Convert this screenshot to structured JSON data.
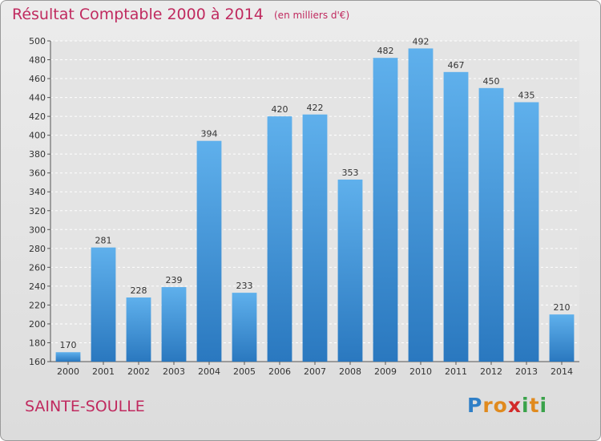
{
  "chart_data": {
    "type": "bar",
    "title": "Résultat Comptable 2000 à 2014",
    "subtitle": "(en milliers d'€)",
    "categories": [
      "2000",
      "2001",
      "2002",
      "2003",
      "2004",
      "2005",
      "2006",
      "2007",
      "2008",
      "2009",
      "2010",
      "2011",
      "2012",
      "2013",
      "2014"
    ],
    "values": [
      170,
      281,
      228,
      239,
      394,
      233,
      420,
      422,
      353,
      482,
      492,
      467,
      450,
      435,
      210
    ],
    "ylim": [
      160,
      500
    ],
    "yticks": [
      160,
      180,
      200,
      220,
      240,
      260,
      280,
      300,
      320,
      340,
      360,
      380,
      400,
      420,
      440,
      460,
      480,
      500
    ],
    "xlabel": "",
    "ylabel": "",
    "grid": true,
    "bar_color": "#3f97d8",
    "bar_color_light": "#5fb0ec"
  },
  "footer": {
    "commune": "SAINTE-SOULLE",
    "logo_letters": [
      "P",
      "r",
      "o",
      "x",
      "i",
      "t",
      "i"
    ],
    "logo_colors": [
      "#2f7fc7",
      "#e08a1e",
      "#e08a1e",
      "#d22a2a",
      "#3aa24a",
      "#e08a1e",
      "#3aa24a"
    ]
  },
  "colors": {
    "accent": "#c02a5f"
  }
}
